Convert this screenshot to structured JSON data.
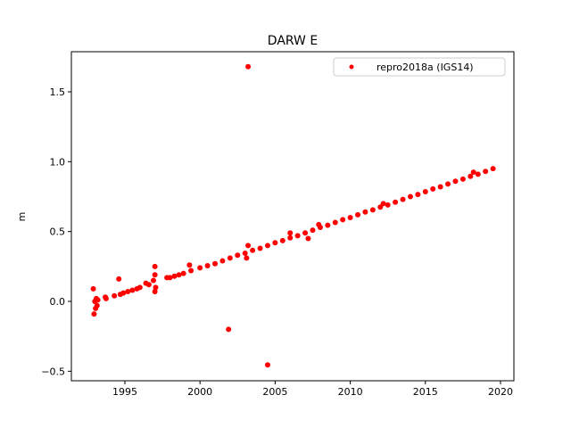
{
  "chart_data": {
    "type": "scatter",
    "title": "DARW E",
    "ylabel": "m",
    "x": [
      1992.9,
      1992.95,
      1993.0,
      1993.05,
      1993.1,
      1993.15,
      1993.2,
      1993.7,
      1993.75,
      1994.3,
      1994.6,
      1994.7,
      1994.9,
      1995.2,
      1995.5,
      1995.8,
      1996.0,
      1996.4,
      1996.6,
      1996.9,
      1997.0,
      1997.0,
      1997.0,
      1997.05,
      1997.8,
      1998.0,
      1998.3,
      1998.6,
      1998.9,
      1999.3,
      1999.4,
      2000.0,
      2000.5,
      2001.0,
      2001.5,
      2001.9,
      2002.0,
      2002.5,
      2003.0,
      2003.1,
      2003.2,
      2003.2,
      2003.5,
      2004.0,
      2004.5,
      2004.5,
      2005.0,
      2005.5,
      2006.0,
      2006.0,
      2006.5,
      2007.0,
      2007.2,
      2007.5,
      2007.9,
      2008.0,
      2008.5,
      2009.0,
      2009.5,
      2010.0,
      2010.5,
      2011.0,
      2011.5,
      2012.0,
      2012.2,
      2012.5,
      2013.0,
      2013.5,
      2014.0,
      2014.5,
      2015.0,
      2015.5,
      2016.0,
      2016.5,
      2017.0,
      2017.5,
      2018.0,
      2018.2,
      2018.5,
      2019.0,
      2019.5
    ],
    "series": [
      {
        "name": "repro2018a (IGS14)",
        "color": "#ff0000",
        "values": [
          0.09,
          -0.09,
          0.0,
          -0.05,
          0.02,
          -0.03,
          0.01,
          0.03,
          0.02,
          0.04,
          0.16,
          0.05,
          0.06,
          0.07,
          0.08,
          0.09,
          0.1,
          0.13,
          0.12,
          0.15,
          0.25,
          0.19,
          0.07,
          0.1,
          0.17,
          0.17,
          0.18,
          0.19,
          0.2,
          0.26,
          0.22,
          0.24,
          0.255,
          0.27,
          0.29,
          -0.2,
          0.31,
          0.33,
          0.345,
          0.31,
          0.4,
          1.68,
          0.365,
          0.38,
          -0.455,
          0.4,
          0.42,
          0.435,
          0.455,
          0.49,
          0.47,
          0.49,
          0.45,
          0.51,
          0.55,
          0.53,
          0.545,
          0.565,
          0.585,
          0.6,
          0.62,
          0.64,
          0.655,
          0.675,
          0.7,
          0.69,
          0.71,
          0.73,
          0.75,
          0.765,
          0.785,
          0.805,
          0.82,
          0.84,
          0.86,
          0.875,
          0.895,
          0.925,
          0.91,
          0.93,
          0.95
        ]
      }
    ],
    "xlim": [
      1991.44,
      2020.89
    ],
    "ylim": [
      -0.568,
      1.787
    ],
    "xticks": [
      1995,
      2000,
      2005,
      2010,
      2015,
      2020
    ],
    "yticks": [
      {
        "value": -0.5,
        "label": "−0.5"
      },
      {
        "value": 0,
        "label": "0.0"
      },
      0.5,
      {
        "value": 1.0,
        "label": "1.0"
      },
      1.5
    ],
    "grid": false,
    "legend": "upper right"
  }
}
